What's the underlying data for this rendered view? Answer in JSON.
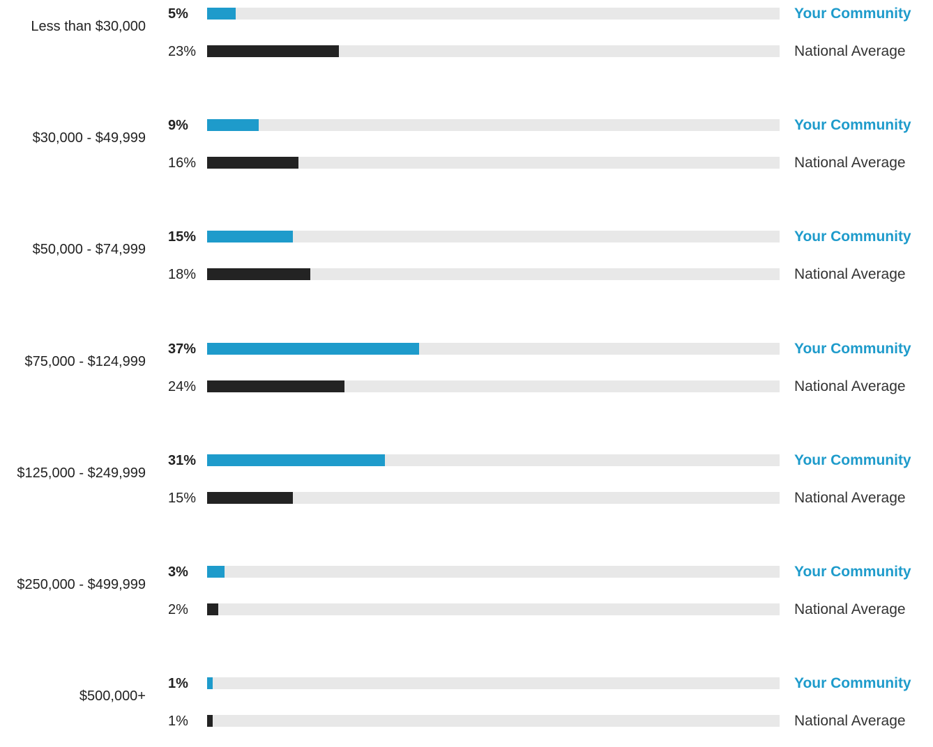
{
  "chart_data": {
    "type": "bar",
    "orientation": "horizontal",
    "value_suffix": "%",
    "xlim": [
      0,
      100
    ],
    "categories": [
      "Less than $30,000",
      "$30,000 - $49,999",
      "$50,000 - $74,999",
      "$75,000 - $124,999",
      "$125,000 - $249,999",
      "$250,000 - $499,999",
      "$500,000+"
    ],
    "series": [
      {
        "name": "Your Community",
        "color": "#1e9bcb",
        "label_color": "#1e9bcb",
        "values": [
          5,
          9,
          15,
          37,
          31,
          3,
          1
        ]
      },
      {
        "name": "National Average",
        "color": "#232323",
        "label_color": "#333333",
        "values": [
          23,
          16,
          18,
          24,
          15,
          2,
          1
        ]
      }
    ],
    "track_color": "#e8e8e8",
    "grid": false
  }
}
